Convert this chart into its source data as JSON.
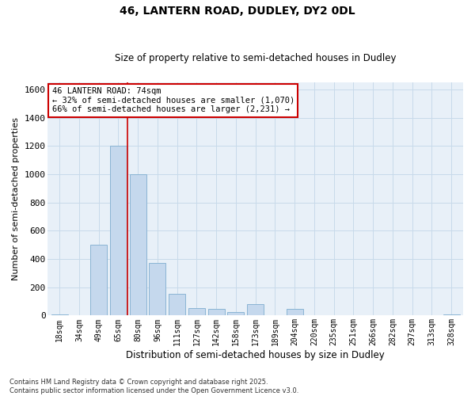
{
  "title1": "46, LANTERN ROAD, DUDLEY, DY2 0DL",
  "title2": "Size of property relative to semi-detached houses in Dudley",
  "xlabel": "Distribution of semi-detached houses by size in Dudley",
  "ylabel": "Number of semi-detached properties",
  "categories": [
    "18sqm",
    "34sqm",
    "49sqm",
    "65sqm",
    "80sqm",
    "96sqm",
    "111sqm",
    "127sqm",
    "142sqm",
    "158sqm",
    "173sqm",
    "189sqm",
    "204sqm",
    "220sqm",
    "235sqm",
    "251sqm",
    "266sqm",
    "282sqm",
    "297sqm",
    "313sqm",
    "328sqm"
  ],
  "values": [
    10,
    0,
    500,
    1200,
    1000,
    370,
    155,
    55,
    45,
    25,
    80,
    0,
    45,
    0,
    0,
    0,
    0,
    0,
    0,
    0,
    10
  ],
  "bar_color": "#c5d8ed",
  "bar_edge_color": "#8ab4d4",
  "vline_x_index": 3.45,
  "vline_color": "#cc0000",
  "annotation_text": "46 LANTERN ROAD: 74sqm\n← 32% of semi-detached houses are smaller (1,070)\n66% of semi-detached houses are larger (2,231) →",
  "annotation_box_color": "#cc0000",
  "ylim": [
    0,
    1650
  ],
  "yticks": [
    0,
    200,
    400,
    600,
    800,
    1000,
    1200,
    1400,
    1600
  ],
  "grid_color": "#c8daea",
  "background_color": "#e8f0f8",
  "footer1": "Contains HM Land Registry data © Crown copyright and database right 2025.",
  "footer2": "Contains public sector information licensed under the Open Government Licence v3.0."
}
